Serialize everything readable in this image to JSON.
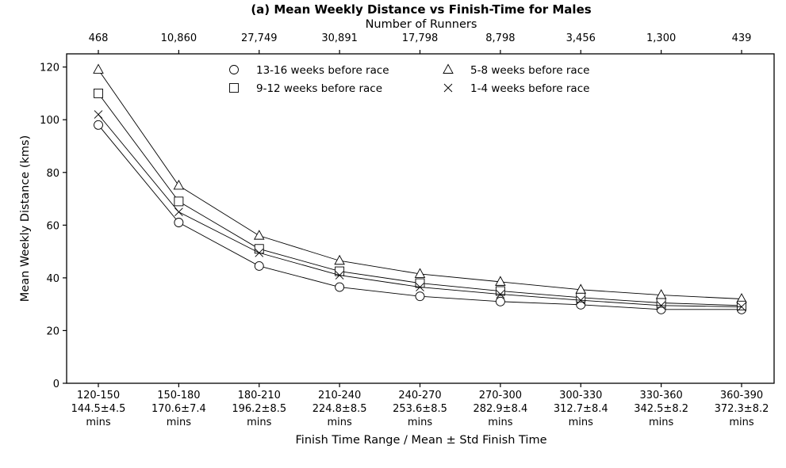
{
  "chart_data": {
    "type": "line",
    "title": "(a) Mean Weekly Distance vs Finish-Time for Males",
    "top_axis_label": "Number of Runners",
    "xlabel": "Finish Time Range / Mean ± Std Finish Time",
    "ylabel": "Mean Weekly Distance (kms)",
    "ylim": [
      0,
      125
    ],
    "yticks": [
      0,
      20,
      40,
      60,
      80,
      100,
      120
    ],
    "categories": [
      "120-150",
      "150-180",
      "180-210",
      "210-240",
      "240-270",
      "270-300",
      "300-330",
      "330-360",
      "360-390"
    ],
    "category_means": [
      "144.5±4.5",
      "170.6±7.4",
      "196.2±8.5",
      "224.8±8.5",
      "253.6±8.5",
      "282.9±8.4",
      "312.7±8.4",
      "342.5±8.2",
      "372.3±8.2"
    ],
    "category_unit": "mins",
    "runner_counts": [
      "468",
      "10,860",
      "27,749",
      "30,891",
      "17,798",
      "8,798",
      "3,456",
      "1,300",
      "439"
    ],
    "grid": false,
    "legend_position": "top-center",
    "series": [
      {
        "name": "13-16 weeks before race",
        "marker": "circle",
        "values": [
          98,
          61,
          44.5,
          36.5,
          33,
          31,
          29.8,
          28,
          28
        ]
      },
      {
        "name": "5-8 weeks before race",
        "marker": "triangle",
        "values": [
          119,
          75,
          56,
          46.5,
          41.5,
          38.5,
          35.5,
          33.5,
          32
        ]
      },
      {
        "name": "9-12 weeks before race",
        "marker": "square",
        "values": [
          110,
          69,
          51,
          42.5,
          38,
          35,
          32.5,
          30.5,
          29.5
        ]
      },
      {
        "name": "1-4 weeks before race",
        "marker": "x",
        "values": [
          102,
          65,
          49.5,
          41,
          36.5,
          33.8,
          31.5,
          29.5,
          29
        ]
      }
    ]
  }
}
